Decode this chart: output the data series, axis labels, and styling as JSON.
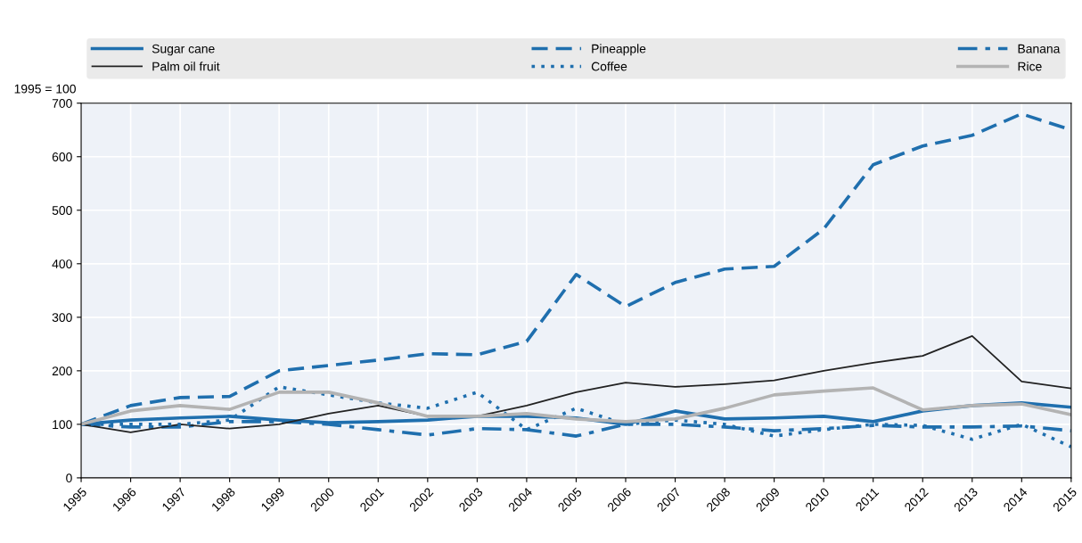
{
  "chart_data": {
    "type": "line",
    "ylabel": "1995 = 100",
    "x": [
      1995,
      1996,
      1997,
      1998,
      1999,
      2000,
      2001,
      2002,
      2003,
      2004,
      2005,
      2006,
      2007,
      2008,
      2009,
      2010,
      2011,
      2012,
      2013,
      2014,
      2015
    ],
    "xlim": [
      1995,
      2015
    ],
    "xticks": [
      1995,
      1996,
      1997,
      1998,
      1999,
      2000,
      2001,
      2002,
      2003,
      2004,
      2005,
      2006,
      2007,
      2008,
      2009,
      2010,
      2011,
      2012,
      2013,
      2014,
      2015
    ],
    "ylim": [
      0,
      700
    ],
    "yticks": [
      0,
      100,
      200,
      300,
      400,
      500,
      600,
      700
    ],
    "grid": true,
    "legend": "top",
    "series": [
      {
        "name": "Sugar cane",
        "color": "#1f6fae",
        "line_style": "solid",
        "values": [
          100,
          108,
          112,
          115,
          108,
          103,
          105,
          108,
          115,
          115,
          112,
          100,
          125,
          110,
          112,
          115,
          105,
          125,
          135,
          140,
          132
        ]
      },
      {
        "name": "Pineapple",
        "color": "#1f6fae",
        "line_style": "dashed",
        "values": [
          100,
          135,
          150,
          152,
          200,
          210,
          220,
          232,
          230,
          255,
          380,
          320,
          365,
          390,
          395,
          465,
          585,
          620,
          640,
          680,
          650
        ]
      },
      {
        "name": "Banana",
        "color": "#1f6fae",
        "line_style": "dashdot",
        "values": [
          100,
          95,
          95,
          105,
          105,
          100,
          90,
          80,
          92,
          90,
          78,
          100,
          100,
          95,
          88,
          92,
          98,
          95,
          95,
          97,
          88
        ]
      },
      {
        "name": "Palm oil fruit",
        "color": "#222222",
        "line_style": "solid",
        "values": [
          100,
          85,
          100,
          92,
          100,
          120,
          135,
          115,
          115,
          135,
          160,
          178,
          170,
          175,
          182,
          200,
          215,
          228,
          265,
          180,
          167
        ]
      },
      {
        "name": "Coffee",
        "color": "#1f6fae",
        "line_style": "dotted",
        "values": [
          100,
          100,
          100,
          108,
          170,
          155,
          140,
          130,
          160,
          90,
          130,
          100,
          108,
          100,
          78,
          90,
          100,
          98,
          72,
          100,
          58
        ]
      },
      {
        "name": "Rice",
        "color": "#b3b3b3",
        "line_style": "solid",
        "values": [
          100,
          125,
          135,
          128,
          160,
          160,
          140,
          115,
          115,
          120,
          110,
          105,
          110,
          130,
          155,
          162,
          168,
          127,
          135,
          138,
          118
        ]
      }
    ]
  }
}
